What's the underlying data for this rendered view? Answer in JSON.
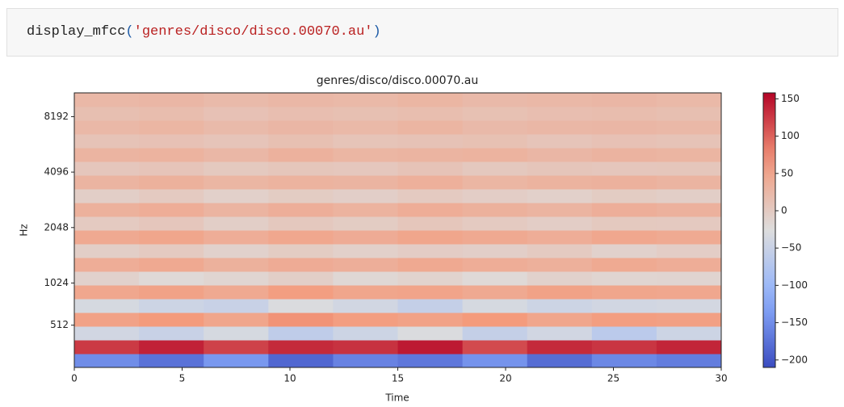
{
  "code_cell": {
    "function": "display_mfcc",
    "open_paren": "(",
    "argument": "'genres/disco/disco.00070.au'",
    "close_paren": ")"
  },
  "chart_data": {
    "type": "heatmap",
    "title": "genres/disco/disco.00070.au",
    "xlabel": "Time",
    "ylabel": "Hz",
    "xlim": [
      0,
      30
    ],
    "xticks": [
      0,
      5,
      10,
      15,
      20,
      25,
      30
    ],
    "yscale": "mel",
    "ylim": [
      0,
      11025
    ],
    "yticks": [
      512,
      1024,
      2048,
      4096,
      8192
    ],
    "cmap": "coolwarm",
    "clim": [
      -210,
      158
    ],
    "cticks": [
      {
        "value": -200,
        "label": "−200"
      },
      {
        "value": -150,
        "label": "−150"
      },
      {
        "value": -100,
        "label": "−100"
      },
      {
        "value": -50,
        "label": "−50"
      },
      0,
      50,
      100,
      150
    ],
    "values": [
      [
        -150,
        -175,
        -140,
        -185,
        -160,
        -170,
        -145,
        -180,
        -155,
        -165
      ],
      [
        125,
        140,
        120,
        135,
        130,
        145,
        115,
        135,
        128,
        138
      ],
      [
        -40,
        -50,
        -35,
        -60,
        -45,
        -30,
        -55,
        -40,
        -65,
        -45
      ],
      [
        55,
        65,
        50,
        70,
        60,
        55,
        65,
        50,
        60,
        58
      ],
      [
        -35,
        -45,
        -50,
        -30,
        -40,
        -55,
        -35,
        -45,
        -40,
        -38
      ],
      [
        48,
        55,
        45,
        60,
        50,
        52,
        45,
        55,
        50,
        48
      ],
      [
        -10,
        -20,
        -15,
        -5,
        -18,
        -12,
        -20,
        -10,
        -15,
        -14
      ],
      [
        40,
        45,
        35,
        42,
        38,
        45,
        40,
        36,
        44,
        40
      ],
      [
        -5,
        0,
        -10,
        -2,
        -8,
        -3,
        -6,
        0,
        -10,
        -4
      ],
      [
        45,
        50,
        40,
        48,
        42,
        50,
        45,
        40,
        48,
        44
      ],
      [
        0,
        5,
        -5,
        3,
        -2,
        6,
        0,
        -4,
        2,
        1
      ],
      [
        35,
        40,
        30,
        38,
        32,
        40,
        35,
        30,
        38,
        34
      ],
      [
        -5,
        0,
        -8,
        -2,
        -6,
        0,
        -4,
        -8,
        -2,
        -5
      ],
      [
        30,
        35,
        28,
        32,
        30,
        36,
        28,
        32,
        34,
        30
      ],
      [
        5,
        8,
        2,
        6,
        4,
        10,
        3,
        7,
        5,
        6
      ],
      [
        30,
        32,
        26,
        34,
        28,
        30,
        32,
        27,
        31,
        29
      ],
      [
        10,
        12,
        8,
        14,
        9,
        11,
        13,
        8,
        12,
        10
      ],
      [
        25,
        28,
        22,
        27,
        24,
        29,
        23,
        26,
        27,
        25
      ],
      [
        15,
        18,
        12,
        16,
        14,
        17,
        13,
        16,
        18,
        15
      ],
      [
        25,
        27,
        22,
        26,
        24,
        28,
        23,
        25,
        27,
        24
      ]
    ]
  }
}
